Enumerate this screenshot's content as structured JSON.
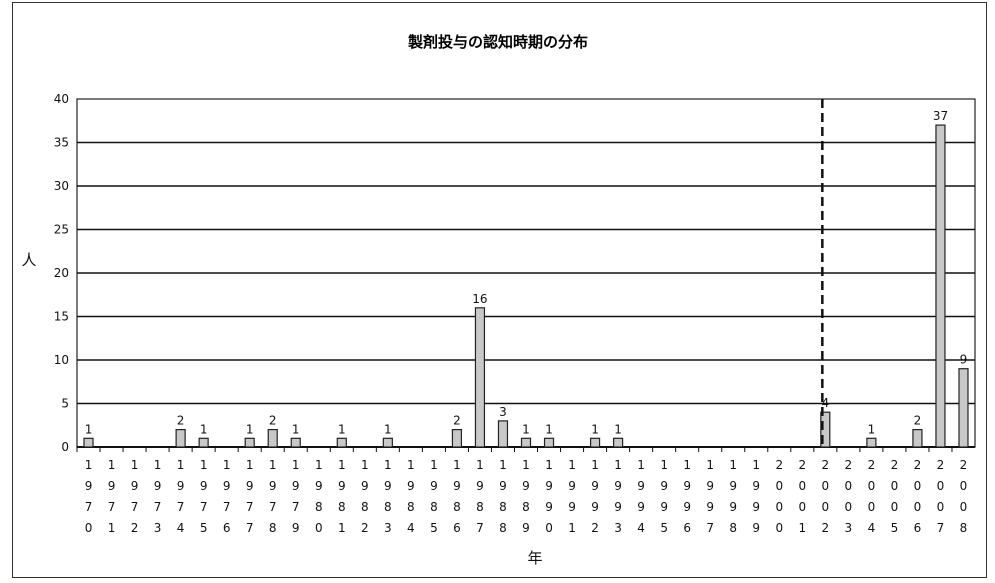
{
  "chart_data": {
    "type": "bar",
    "title": "製剤投与の認知時期の分布",
    "xlabel": "年",
    "ylabel": "人",
    "ylim": [
      0,
      40
    ],
    "yticks": [
      0,
      5,
      10,
      15,
      20,
      25,
      30,
      35,
      40
    ],
    "grid": true,
    "marker_year": 2002,
    "categories": [
      "1970",
      "1971",
      "1972",
      "1973",
      "1974",
      "1975",
      "1976",
      "1977",
      "1978",
      "1979",
      "1980",
      "1981",
      "1982",
      "1983",
      "1984",
      "1985",
      "1986",
      "1987",
      "1988",
      "1989",
      "1990",
      "1991",
      "1992",
      "1993",
      "1994",
      "1995",
      "1996",
      "1997",
      "1998",
      "1999",
      "2000",
      "2001",
      "2002",
      "2003",
      "2004",
      "2005",
      "2006",
      "2007",
      "2008"
    ],
    "values": [
      1,
      0,
      0,
      0,
      2,
      1,
      0,
      1,
      2,
      1,
      0,
      1,
      0,
      1,
      0,
      0,
      2,
      16,
      3,
      1,
      1,
      0,
      1,
      1,
      0,
      0,
      0,
      0,
      0,
      0,
      0,
      0,
      4,
      0,
      1,
      0,
      2,
      37,
      9
    ]
  }
}
